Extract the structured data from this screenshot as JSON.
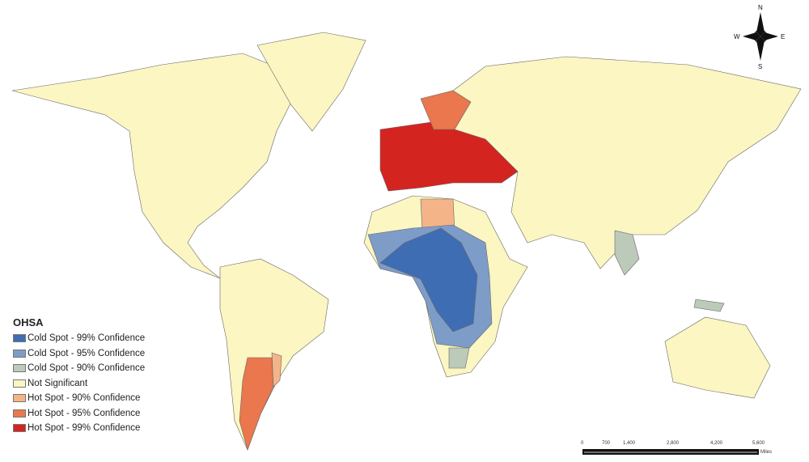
{
  "legend": {
    "title": "OHSA",
    "items": [
      {
        "label": "Cold Spot - 99% Confidence",
        "color": "#3f6db3"
      },
      {
        "label": "Cold Spot - 95% Confidence",
        "color": "#7e9cc8"
      },
      {
        "label": "Cold Spot - 90% Confidence",
        "color": "#bccab9"
      },
      {
        "label": "Not Significant",
        "color": "#fbf6c2"
      },
      {
        "label": "Hot Spot - 90% Confidence",
        "color": "#f5b487"
      },
      {
        "label": "Hot Spot - 95% Confidence",
        "color": "#ea774d"
      },
      {
        "label": "Hot Spot - 99% Confidence",
        "color": "#d42420"
      }
    ]
  },
  "compass": {
    "n": "N",
    "s": "S",
    "e": "E",
    "w": "W"
  },
  "scale_bar": {
    "ticks": [
      "0",
      "700",
      "1,400",
      "2,800",
      "4,200",
      "5,600"
    ],
    "unit": "Miles"
  }
}
